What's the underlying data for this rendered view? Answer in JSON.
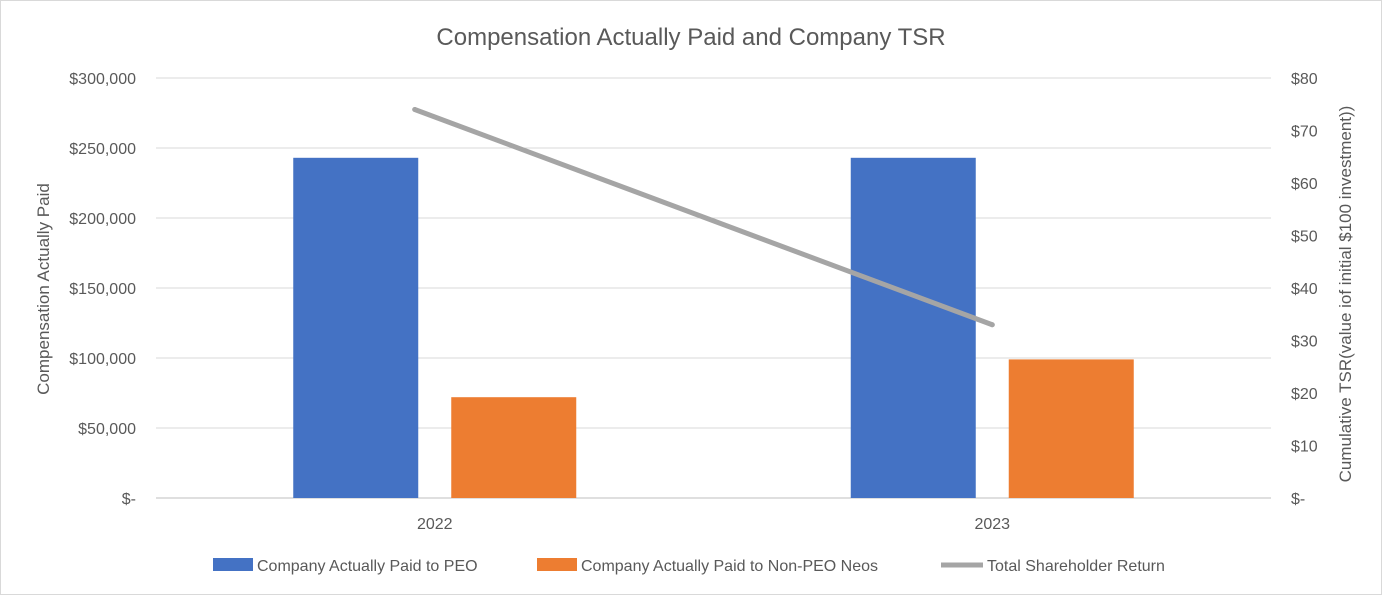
{
  "chart_data": {
    "type": "bar",
    "title": "Compensation Actually Paid and Company TSR",
    "categories": [
      "2022",
      "2023"
    ],
    "series": [
      {
        "name": "Company Actually Paid to PEO",
        "type": "bar",
        "axis": "left",
        "color": "#4472c4",
        "values": [
          243000,
          243000
        ]
      },
      {
        "name": "Company Actually Paid to Non-PEO Neos",
        "type": "bar",
        "axis": "left",
        "color": "#ed7d31",
        "values": [
          72000,
          99000
        ]
      },
      {
        "name": "Total Shareholder Return",
        "type": "line",
        "axis": "right",
        "color": "#a5a5a5",
        "values": [
          74,
          33
        ]
      }
    ],
    "ylabel": "Compensation  Actually Paid",
    "y2label": "Cumulative TSR(value iof initial $100 investment))",
    "ylim": [
      0,
      300000
    ],
    "y2lim": [
      0,
      80
    ],
    "yticks": [
      "$-",
      "$50,000",
      "$100,000",
      "$150,000",
      "$200,000",
      "$250,000",
      "$300,000"
    ],
    "y2ticks": [
      "$-",
      "$10",
      "$20",
      "$30",
      "$40",
      "$50",
      "$60",
      "$70",
      "$80"
    ],
    "grid": true,
    "legend": "bottom"
  }
}
